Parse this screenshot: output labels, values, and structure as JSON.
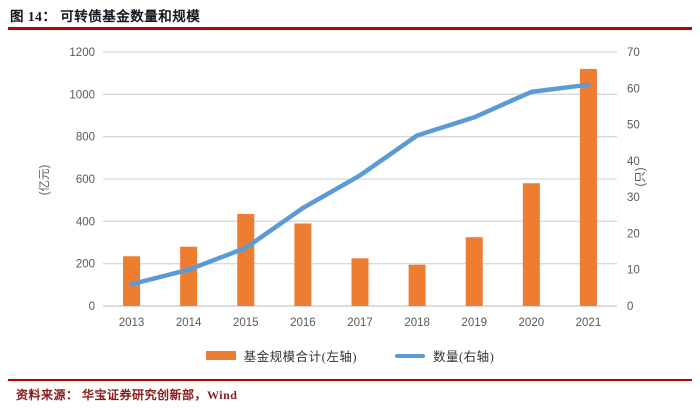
{
  "title": "图 14： 可转债基金数量和规模",
  "source_note": "资料来源： 华宝证券研究创新部，Wind",
  "colors": {
    "bar": "#ed7d31",
    "line": "#5b9bd5",
    "grid": "#d9d9d9",
    "axis_zero_line": "#c8c8c8",
    "tick_text": "#595959",
    "rule_red": "#c00000",
    "title_text": "#14161f",
    "source_text": "#8a1c1c"
  },
  "chart_data": {
    "type": "bar",
    "title": "可转债基金数量和规模",
    "categories": [
      "2013",
      "2014",
      "2015",
      "2016",
      "2017",
      "2018",
      "2019",
      "2020",
      "2021"
    ],
    "series": [
      {
        "name": "基金规模合计(左轴)",
        "type": "bar",
        "axis": "left",
        "values": [
          235,
          280,
          435,
          390,
          225,
          195,
          325,
          580,
          1120
        ]
      },
      {
        "name": "数量(右轴)",
        "type": "line",
        "axis": "right",
        "values": [
          6,
          10,
          16,
          27,
          36,
          47,
          52,
          59,
          61
        ]
      }
    ],
    "left_axis": {
      "label": "(亿元)",
      "min": 0,
      "max": 1200,
      "step": 200
    },
    "right_axis": {
      "label": "(只)",
      "min": 0,
      "max": 70,
      "step": 10
    },
    "grid": true,
    "legend_position": "bottom"
  }
}
